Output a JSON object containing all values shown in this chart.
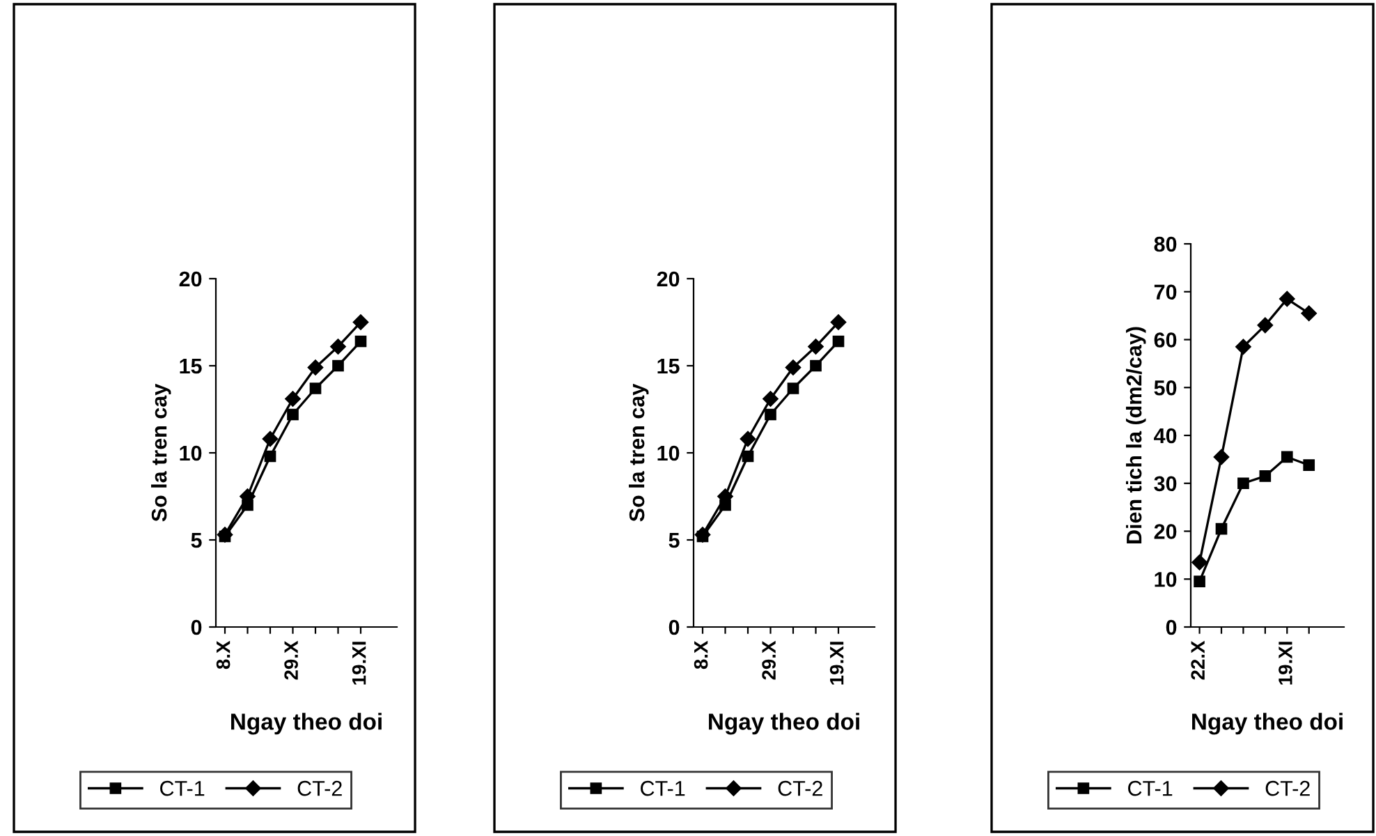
{
  "chart_data": [
    {
      "type": "line",
      "xlabel": "Ngay theo doi",
      "ylabel": "So la tren cay",
      "categories": [
        "8.X",
        null,
        null,
        "29.X",
        null,
        null,
        "19.XI"
      ],
      "ylim": [
        0,
        20
      ],
      "yticks": [
        0,
        5,
        10,
        15,
        20
      ],
      "legend": "bottom",
      "grid": false,
      "line_style": "solid",
      "series": [
        {
          "name": "CT-1",
          "color": "#000000",
          "marker": "square",
          "values": [
            5.2,
            7.0,
            9.8,
            12.2,
            13.7,
            15.0,
            16.4
          ]
        },
        {
          "name": "CT-2",
          "color": "#000000",
          "marker": "diamond",
          "values": [
            5.3,
            7.5,
            10.8,
            13.1,
            14.9,
            16.1,
            17.5
          ]
        }
      ]
    },
    {
      "type": "line",
      "xlabel": "Ngay theo doi",
      "ylabel": "So la tren cay",
      "categories": [
        "8.X",
        null,
        null,
        "29.X",
        null,
        null,
        "19.XI"
      ],
      "ylim": [
        0,
        20
      ],
      "yticks": [
        0,
        5,
        10,
        15,
        20
      ],
      "legend": "bottom",
      "grid": false,
      "line_style": "solid",
      "series": [
        {
          "name": "CT-1",
          "color": "#000000",
          "marker": "square",
          "values": [
            5.2,
            7.0,
            9.8,
            12.2,
            13.7,
            15.0,
            16.4
          ]
        },
        {
          "name": "CT-2",
          "color": "#000000",
          "marker": "diamond",
          "values": [
            5.3,
            7.5,
            10.8,
            13.1,
            14.9,
            16.1,
            17.5
          ]
        }
      ]
    },
    {
      "type": "line",
      "xlabel": "Ngay theo doi",
      "ylabel": "Dien tich la (dm2/cay)",
      "categories": [
        "22.X",
        null,
        null,
        null,
        "19.XI",
        null
      ],
      "ylim": [
        0,
        80
      ],
      "yticks": [
        0,
        10,
        20,
        30,
        40,
        50,
        60,
        70,
        80
      ],
      "legend": "bottom",
      "grid": false,
      "line_style": "solid",
      "series": [
        {
          "name": "CT-1",
          "color": "#000000",
          "marker": "square",
          "values": [
            9.5,
            20.5,
            30,
            31.5,
            35.5,
            33.8
          ]
        },
        {
          "name": "CT-2",
          "color": "#000000",
          "marker": "diamond",
          "values": [
            13.5,
            35.5,
            58.5,
            63,
            68.5,
            65.5
          ]
        }
      ]
    }
  ]
}
